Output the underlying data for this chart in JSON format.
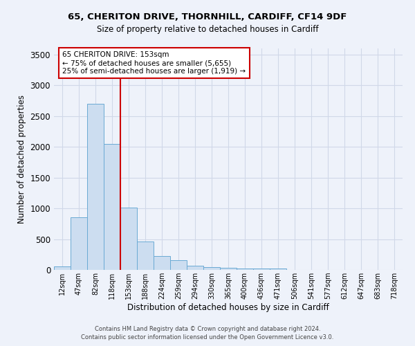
{
  "title1": "65, CHERITON DRIVE, THORNHILL, CARDIFF, CF14 9DF",
  "title2": "Size of property relative to detached houses in Cardiff",
  "xlabel": "Distribution of detached houses by size in Cardiff",
  "ylabel": "Number of detached properties",
  "bar_labels": [
    "12sqm",
    "47sqm",
    "82sqm",
    "118sqm",
    "153sqm",
    "188sqm",
    "224sqm",
    "259sqm",
    "294sqm",
    "330sqm",
    "365sqm",
    "400sqm",
    "436sqm",
    "471sqm",
    "506sqm",
    "541sqm",
    "577sqm",
    "612sqm",
    "647sqm",
    "683sqm",
    "718sqm"
  ],
  "bar_values": [
    60,
    850,
    2700,
    2050,
    1010,
    460,
    220,
    155,
    70,
    50,
    30,
    20,
    20,
    20,
    5,
    5,
    5,
    5,
    5,
    5,
    5
  ],
  "bar_color": "#ccddf0",
  "bar_edge_color": "#6aaad4",
  "vline_idx": 4,
  "vline_color": "#cc0000",
  "ylim": [
    0,
    3600
  ],
  "yticks": [
    0,
    500,
    1000,
    1500,
    2000,
    2500,
    3000,
    3500
  ],
  "annotation_text_line1": "65 CHERITON DRIVE: 153sqm",
  "annotation_text_line2": "← 75% of detached houses are smaller (5,655)",
  "annotation_text_line3": "25% of semi-detached houses are larger (1,919) →",
  "footnote1": "Contains HM Land Registry data © Crown copyright and database right 2024.",
  "footnote2": "Contains public sector information licensed under the Open Government Licence v3.0.",
  "grid_color": "#d0d8e8",
  "background_color": "#eef2fa"
}
